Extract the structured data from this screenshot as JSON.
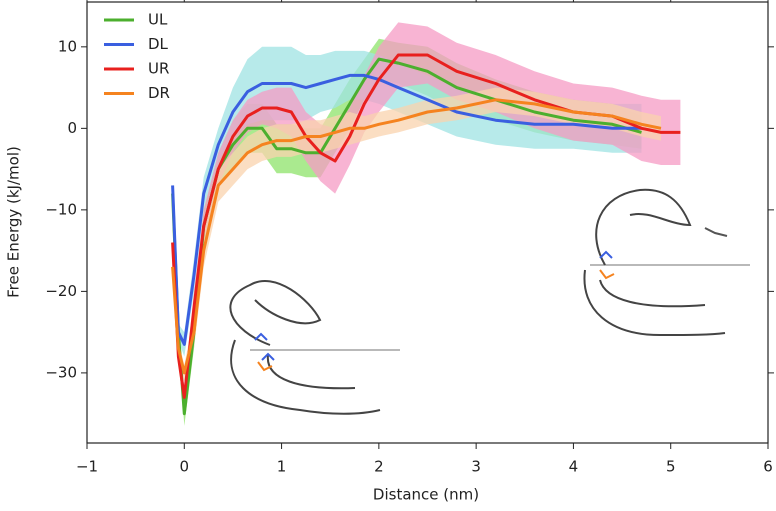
{
  "chart_data": {
    "type": "line",
    "xlabel": "Distance (nm)",
    "ylabel": "Free Energy (kJ/mol)",
    "xlim": [
      -1,
      6
    ],
    "ylim": [
      -38.6,
      15.5
    ],
    "xticks": [
      {
        "value": -1,
        "label": "−1"
      },
      0,
      1,
      2,
      3,
      4,
      5,
      6
    ],
    "yticks": [
      {
        "value": -30,
        "label": "−30"
      },
      {
        "value": -20,
        "label": "−20"
      },
      {
        "value": -10,
        "label": "−10"
      },
      0,
      10
    ],
    "legend": "upper left",
    "x": [
      -0.12,
      -0.06,
      0,
      0.1,
      0.2,
      0.35,
      0.5,
      0.65,
      0.8,
      0.95,
      1.1,
      1.25,
      1.4,
      1.55,
      1.7,
      1.85,
      2.0,
      2.2,
      2.5,
      2.8,
      3.2,
      3.6,
      4.0,
      4.4,
      4.7,
      4.9,
      5.1
    ],
    "series": [
      {
        "name": "UL",
        "color": "#4caf2e",
        "band_color": "#8ee36a",
        "values": [
          -8,
          -25,
          -35,
          -25,
          -12,
          -5,
          -2,
          0,
          0,
          -2.5,
          -2.5,
          -3,
          -3,
          0,
          3,
          6,
          8.5,
          8,
          7,
          5,
          3.5,
          2,
          1,
          0.5,
          -0.5,
          null,
          null
        ],
        "spread": [
          0,
          1,
          1.5,
          2,
          2,
          2,
          3,
          3,
          3,
          3,
          3,
          3,
          3,
          3,
          3,
          2.5,
          2.5,
          2.5,
          3,
          3,
          2.5,
          2.5,
          2.5,
          2.5,
          2,
          null,
          null
        ]
      },
      {
        "name": "DL",
        "color": "#3a5fe0",
        "band_color": "#9fe3e3",
        "values": [
          -7,
          -25,
          -26.5,
          -18,
          -8,
          -2,
          2,
          4.5,
          5.5,
          5.5,
          5.5,
          5,
          5.5,
          6,
          6.5,
          6.5,
          6,
          5,
          3.5,
          2,
          1,
          0.5,
          0.5,
          0,
          0,
          null,
          null
        ],
        "spread": [
          0,
          1,
          1.5,
          2,
          2,
          2,
          3,
          4,
          4.5,
          4.5,
          4.5,
          4,
          3.5,
          3.5,
          3,
          3,
          3,
          3,
          3,
          3,
          3,
          3,
          3,
          3,
          3,
          null,
          null
        ]
      },
      {
        "name": "UR",
        "color": "#e8201e",
        "band_color": "#f59bc4",
        "values": [
          -14,
          -28,
          -33,
          -22,
          -12,
          -5,
          -1,
          1.5,
          2.5,
          2.5,
          2,
          -1,
          -3,
          -4,
          -1,
          3,
          6,
          9,
          9,
          7,
          5.5,
          3.5,
          2,
          1.5,
          0,
          -0.5,
          -0.5
        ],
        "spread": [
          0,
          1,
          1.5,
          2,
          2,
          2,
          2,
          2,
          2,
          2.5,
          3,
          3,
          3.5,
          4,
          3.5,
          3.5,
          4,
          4,
          3.5,
          3.5,
          3.5,
          3.5,
          3.5,
          3.5,
          4,
          4,
          4
        ]
      },
      {
        "name": "DR",
        "color": "#f5831f",
        "band_color": "#fad3ad",
        "values": [
          -17,
          -27,
          -30,
          -25,
          -15,
          -7,
          -5,
          -3,
          -2,
          -1.5,
          -1.5,
          -1,
          -1,
          -0.5,
          0,
          0,
          0.5,
          1,
          2,
          2.5,
          3.5,
          3,
          2,
          1.5,
          0.5,
          0,
          null
        ],
        "spread": [
          0,
          1,
          1,
          2,
          2,
          2,
          2,
          2,
          2,
          2,
          2,
          2,
          2,
          2,
          2,
          1.5,
          1.5,
          1.5,
          1.5,
          1.5,
          1.5,
          1.5,
          1.5,
          1.5,
          1.5,
          1.5,
          null
        ]
      }
    ]
  }
}
